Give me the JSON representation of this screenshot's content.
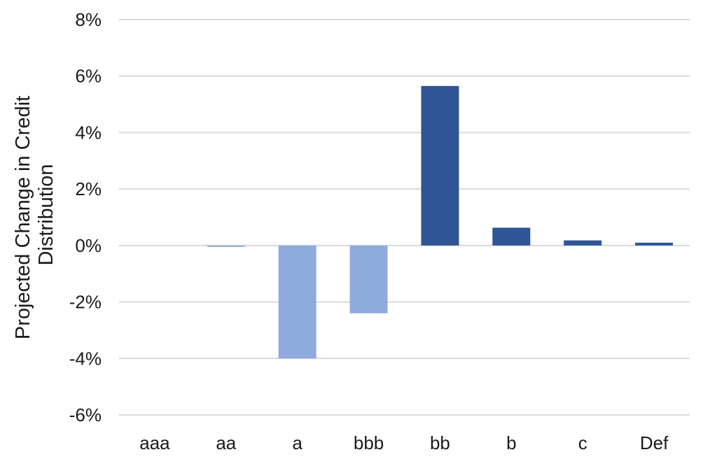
{
  "chart_data": {
    "type": "bar",
    "title": "",
    "xlabel": "",
    "ylabel_lines": [
      "Projected Change in Credit",
      "Distribution"
    ],
    "categories": [
      "aaa",
      "aa",
      "a",
      "bbb",
      "bb",
      "b",
      "c",
      "Def"
    ],
    "values": [
      0.0,
      -0.05,
      -4.0,
      -2.4,
      5.65,
      0.63,
      0.18,
      0.1
    ],
    "value_unit": "%",
    "ylim": [
      -6,
      8
    ],
    "yticks": [
      8,
      6,
      4,
      2,
      0,
      -2,
      -4,
      -6
    ],
    "ytick_labels": [
      "8%",
      "6%",
      "4%",
      "2%",
      "0%",
      "-2%",
      "-4%",
      "-6%"
    ],
    "grid": true,
    "legend": "none",
    "colors": {
      "negative": "#8faadc",
      "positive": "#2f5597",
      "grid": "#d9d9d9",
      "text": "#1a1a1a"
    }
  }
}
